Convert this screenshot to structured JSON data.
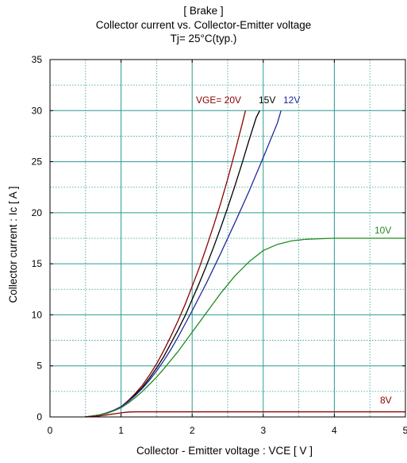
{
  "chart_data": {
    "type": "line",
    "title": [
      "[ Brake ]",
      "Collector current  vs.  Collector-Emitter voltage",
      "Tj= 25°C(typ.)"
    ],
    "xlabel": "Collector - Emitter voltage  :  VCE  [ V ]",
    "ylabel": "Collector current  :  Ic  [ A ]",
    "xlim": [
      0,
      5
    ],
    "ylim": [
      0,
      35
    ],
    "x_ticks": [
      "0",
      "1",
      "2",
      "3",
      "4",
      "5"
    ],
    "y_ticks": [
      "0",
      "5",
      "10",
      "15",
      "20",
      "25",
      "30",
      "35"
    ],
    "grid": true,
    "colors": {
      "major_grid": "#2a9a8f",
      "minor_grid": "#2a9a8f",
      "axis": "#000000"
    },
    "series": [
      {
        "name": "VGE= 20V",
        "color": "#8b0000",
        "x": [
          0.5,
          0.6,
          0.7,
          0.8,
          0.9,
          1.0,
          1.1,
          1.2,
          1.3,
          1.4,
          1.5,
          1.6,
          1.7,
          1.8,
          1.9,
          2.0,
          2.1,
          2.2,
          2.3,
          2.4,
          2.5,
          2.6,
          2.7,
          2.75
        ],
        "y": [
          0,
          0.1,
          0.2,
          0.4,
          0.65,
          1.0,
          1.6,
          2.3,
          3.1,
          4.1,
          5.2,
          6.5,
          7.9,
          9.4,
          11.0,
          12.8,
          14.6,
          16.6,
          18.7,
          20.9,
          23.3,
          25.9,
          28.6,
          30.0
        ]
      },
      {
        "name": "15V",
        "color": "#000000",
        "x": [
          0.5,
          0.6,
          0.7,
          0.8,
          0.9,
          1.0,
          1.1,
          1.2,
          1.3,
          1.4,
          1.5,
          1.6,
          1.7,
          1.8,
          1.9,
          2.0,
          2.1,
          2.2,
          2.3,
          2.4,
          2.5,
          2.6,
          2.7,
          2.8,
          2.9,
          2.95
        ],
        "y": [
          0,
          0.1,
          0.2,
          0.4,
          0.65,
          1.0,
          1.5,
          2.2,
          2.9,
          3.8,
          4.8,
          5.9,
          7.2,
          8.5,
          9.9,
          11.5,
          13.1,
          14.8,
          16.6,
          18.5,
          20.5,
          22.6,
          24.8,
          27.1,
          29.3,
          30.0
        ]
      },
      {
        "name": "12V",
        "color": "#1f2a9e",
        "x": [
          0.5,
          0.6,
          0.7,
          0.8,
          0.9,
          1.0,
          1.1,
          1.2,
          1.3,
          1.4,
          1.5,
          1.6,
          1.7,
          1.8,
          1.9,
          2.0,
          2.2,
          2.4,
          2.6,
          2.8,
          3.0,
          3.2,
          3.25
        ],
        "y": [
          0,
          0.1,
          0.2,
          0.4,
          0.65,
          1.0,
          1.5,
          2.1,
          2.8,
          3.6,
          4.5,
          5.5,
          6.6,
          7.8,
          9.1,
          10.4,
          13.1,
          16.0,
          19.0,
          22.1,
          25.4,
          28.8,
          30.0
        ]
      },
      {
        "name": "10V",
        "color": "#228b22",
        "x": [
          0.5,
          0.6,
          0.7,
          0.8,
          0.9,
          1.0,
          1.1,
          1.2,
          1.3,
          1.4,
          1.5,
          1.6,
          1.8,
          2.0,
          2.2,
          2.4,
          2.6,
          2.8,
          3.0,
          3.2,
          3.4,
          3.6,
          3.8,
          4.0,
          4.5,
          5.0
        ],
        "y": [
          0,
          0.1,
          0.2,
          0.35,
          0.6,
          0.9,
          1.35,
          1.9,
          2.5,
          3.2,
          3.9,
          4.7,
          6.4,
          8.3,
          10.2,
          12.1,
          13.8,
          15.2,
          16.3,
          16.9,
          17.25,
          17.4,
          17.45,
          17.5,
          17.5,
          17.5
        ]
      },
      {
        "name": "8V",
        "color": "#8b0000",
        "x": [
          0.5,
          0.6,
          0.7,
          0.8,
          0.9,
          1.0,
          1.1,
          1.2,
          1.5,
          2.0,
          3.0,
          4.0,
          5.0
        ],
        "y": [
          0,
          0.05,
          0.1,
          0.2,
          0.3,
          0.4,
          0.48,
          0.5,
          0.5,
          0.5,
          0.5,
          0.5,
          0.5
        ]
      }
    ]
  }
}
